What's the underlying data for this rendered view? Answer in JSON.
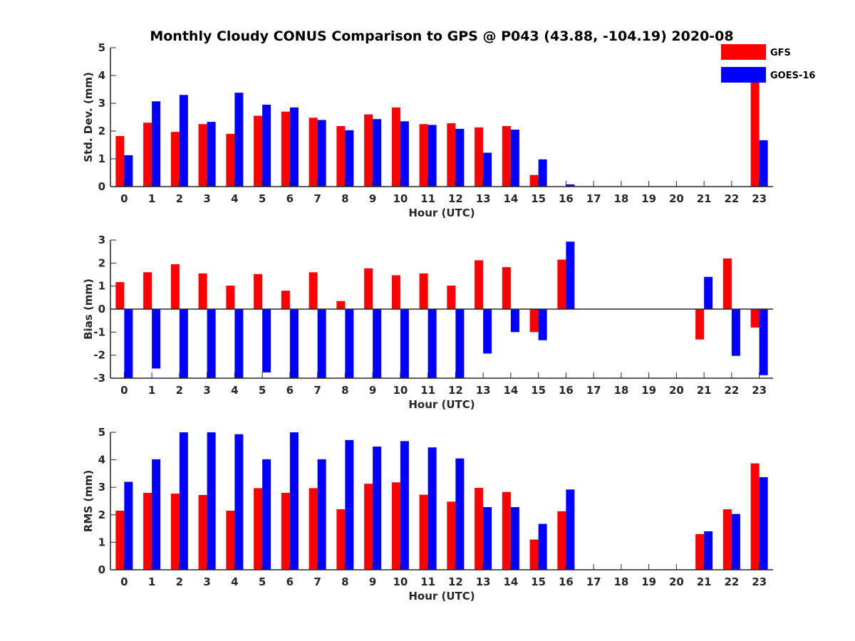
{
  "chart_data": [
    {
      "type": "bar",
      "title": "Monthly Cloudy CONUS Comparison to GPS @ P043 (43.88, -104.19) 2020-08",
      "xlabel": "Hour (UTC)",
      "ylabel": "Std. Dev. (mm)",
      "ylim": [
        0,
        5
      ],
      "yticks": [
        0,
        1,
        2,
        3,
        4,
        5
      ],
      "categories": [
        "0",
        "1",
        "2",
        "3",
        "4",
        "5",
        "6",
        "7",
        "8",
        "9",
        "10",
        "11",
        "12",
        "13",
        "14",
        "15",
        "16",
        "17",
        "18",
        "19",
        "20",
        "21",
        "22",
        "23"
      ],
      "series": [
        {
          "name": "GFS",
          "color": "#ff0000",
          "values": [
            1.82,
            2.3,
            1.97,
            2.25,
            1.9,
            2.55,
            2.7,
            2.48,
            2.18,
            2.6,
            2.85,
            2.25,
            2.28,
            2.13,
            2.18,
            0.42,
            0,
            0,
            0,
            0,
            0,
            0,
            0,
            4.2
          ]
        },
        {
          "name": "GOES-16",
          "color": "#0000ff",
          "values": [
            1.13,
            3.07,
            3.3,
            2.33,
            3.38,
            2.95,
            2.85,
            2.4,
            2.03,
            2.43,
            2.35,
            2.22,
            2.08,
            1.22,
            2.05,
            0.98,
            0.08,
            0,
            0,
            0,
            0,
            0,
            0,
            1.67
          ]
        }
      ],
      "legend": {
        "position": "top-right",
        "entries": [
          "GFS",
          "GOES-16"
        ]
      }
    },
    {
      "type": "bar",
      "xlabel": "Hour (UTC)",
      "ylabel": "Bias (mm)",
      "ylim": [
        -3,
        3
      ],
      "yticks": [
        -3,
        -2,
        -1,
        0,
        1,
        2,
        3
      ],
      "categories": [
        "0",
        "1",
        "2",
        "3",
        "4",
        "5",
        "6",
        "7",
        "8",
        "9",
        "10",
        "11",
        "12",
        "13",
        "14",
        "15",
        "16",
        "17",
        "18",
        "19",
        "20",
        "21",
        "22",
        "23"
      ],
      "series": [
        {
          "name": "GFS",
          "color": "#ff0000",
          "values": [
            1.17,
            1.6,
            1.95,
            1.55,
            1.02,
            1.52,
            0.8,
            1.6,
            0.35,
            1.77,
            1.47,
            1.55,
            1.02,
            2.12,
            1.82,
            -1.0,
            2.15,
            0,
            0,
            0,
            0,
            -1.32,
            2.2,
            -0.8
          ]
        },
        {
          "name": "GOES-16",
          "color": "#0000ff",
          "values": [
            -3.0,
            -2.58,
            -3.0,
            -3.0,
            -3.0,
            -2.75,
            -3.0,
            -3.0,
            -3.0,
            -3.0,
            -3.0,
            -3.0,
            -3.0,
            -1.93,
            -1.0,
            -1.35,
            2.93,
            0,
            0,
            0,
            0,
            1.4,
            -2.03,
            -2.87
          ]
        }
      ]
    },
    {
      "type": "bar",
      "xlabel": "Hour (UTC)",
      "ylabel": "RMS (mm)",
      "ylim": [
        0,
        5
      ],
      "yticks": [
        0,
        1,
        2,
        3,
        4,
        5
      ],
      "categories": [
        "0",
        "1",
        "2",
        "3",
        "4",
        "5",
        "6",
        "7",
        "8",
        "9",
        "10",
        "11",
        "12",
        "13",
        "14",
        "15",
        "16",
        "17",
        "18",
        "19",
        "20",
        "21",
        "22",
        "23"
      ],
      "series": [
        {
          "name": "GFS",
          "color": "#ff0000",
          "values": [
            2.15,
            2.8,
            2.77,
            2.72,
            2.15,
            2.97,
            2.8,
            2.97,
            2.2,
            3.13,
            3.18,
            2.73,
            2.48,
            2.98,
            2.83,
            1.1,
            2.13,
            0,
            0,
            0,
            0,
            1.3,
            2.2,
            3.87
          ]
        },
        {
          "name": "GOES-16",
          "color": "#0000ff",
          "values": [
            3.2,
            4.02,
            5.0,
            5.0,
            4.93,
            4.02,
            5.0,
            4.02,
            4.72,
            4.48,
            4.68,
            4.45,
            4.05,
            2.28,
            2.28,
            1.67,
            2.92,
            0,
            0,
            0,
            0,
            1.4,
            2.03,
            3.37
          ]
        }
      ]
    }
  ]
}
